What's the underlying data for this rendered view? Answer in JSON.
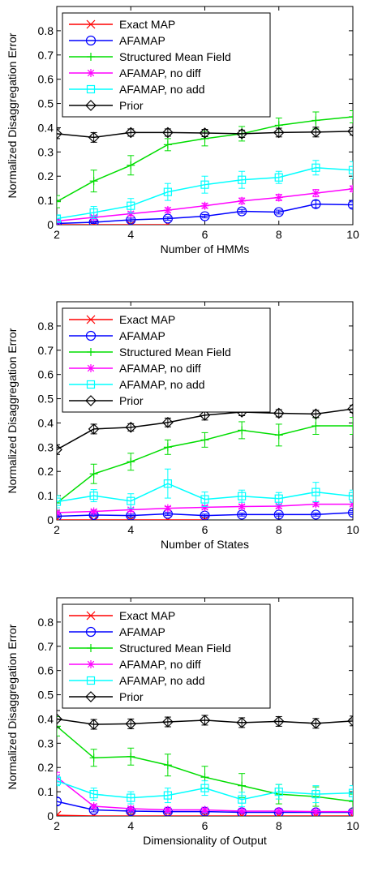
{
  "style": {
    "series_styles": {
      "Exact MAP": {
        "color": "#ff0000",
        "marker": "x"
      },
      "AFAMAP": {
        "color": "#0000ff",
        "marker": "circle"
      },
      "Structured Mean Field": {
        "color": "#00dd00",
        "marker": "plus"
      },
      "AFAMAP, no diff": {
        "color": "#ff00ff",
        "marker": "asterisk"
      },
      "AFAMAP, no add": {
        "color": "#00ffff",
        "marker": "square"
      },
      "Prior": {
        "color": "#000000",
        "marker": "diamond"
      }
    },
    "legend_placement": "top-left",
    "grid": false
  },
  "chart_data": [
    {
      "type": "line",
      "xlabel": "Number of HMMs",
      "ylabel": "Normalized Disaggregation Error",
      "xlim": [
        2,
        10
      ],
      "ylim": [
        0,
        0.9
      ],
      "xticks": [
        2,
        4,
        6,
        8,
        10
      ],
      "yticks": [
        0,
        0.1,
        0.2,
        0.3,
        0.4,
        0.5,
        0.6,
        0.7,
        0.8
      ],
      "series": [
        {
          "name": "Exact MAP",
          "x": [
            2,
            3,
            4,
            5
          ],
          "values": [
            0.0,
            0.0,
            0.0,
            0.0
          ],
          "errors": [
            0,
            0,
            0,
            0
          ]
        },
        {
          "name": "AFAMAP",
          "x": [
            2,
            3,
            4,
            5,
            6,
            7,
            8,
            9,
            10
          ],
          "values": [
            0.005,
            0.01,
            0.02,
            0.025,
            0.035,
            0.055,
            0.052,
            0.085,
            0.082
          ],
          "errors": [
            0.003,
            0.005,
            0.007,
            0.007,
            0.007,
            0.008,
            0.008,
            0.015,
            0.012
          ]
        },
        {
          "name": "Structured Mean Field",
          "x": [
            2,
            3,
            4,
            5,
            6,
            7,
            8,
            9,
            10
          ],
          "values": [
            0.095,
            0.18,
            0.245,
            0.33,
            0.355,
            0.375,
            0.41,
            0.43,
            0.445
          ],
          "errors": [
            0.025,
            0.045,
            0.04,
            0.025,
            0.03,
            0.03,
            0.03,
            0.035,
            0.025
          ]
        },
        {
          "name": "AFAMAP, no diff",
          "x": [
            2,
            3,
            4,
            5,
            6,
            7,
            8,
            9,
            10
          ],
          "values": [
            0.015,
            0.03,
            0.045,
            0.06,
            0.078,
            0.098,
            0.112,
            0.13,
            0.148
          ],
          "errors": [
            0.005,
            0.007,
            0.008,
            0.01,
            0.01,
            0.012,
            0.013,
            0.015,
            0.012
          ]
        },
        {
          "name": "AFAMAP, no add",
          "x": [
            2,
            3,
            4,
            5,
            6,
            7,
            8,
            9,
            10
          ],
          "values": [
            0.025,
            0.05,
            0.078,
            0.135,
            0.165,
            0.185,
            0.195,
            0.235,
            0.225
          ],
          "errors": [
            0.012,
            0.025,
            0.03,
            0.035,
            0.035,
            0.035,
            0.025,
            0.03,
            0.035
          ]
        },
        {
          "name": "Prior",
          "x": [
            2,
            3,
            4,
            5,
            6,
            7,
            8,
            9,
            10
          ],
          "values": [
            0.375,
            0.36,
            0.38,
            0.38,
            0.378,
            0.375,
            0.38,
            0.382,
            0.385
          ],
          "errors": [
            0.02,
            0.02,
            0.015,
            0.015,
            0.015,
            0.015,
            0.018,
            0.02,
            0.015
          ]
        }
      ]
    },
    {
      "type": "line",
      "xlabel": "Number of States",
      "ylabel": "Normalized Disaggregation Error",
      "xlim": [
        2,
        10
      ],
      "ylim": [
        0,
        0.9
      ],
      "xticks": [
        2,
        4,
        6,
        8,
        10
      ],
      "yticks": [
        0,
        0.1,
        0.2,
        0.3,
        0.4,
        0.5,
        0.6,
        0.7,
        0.8
      ],
      "series": [
        {
          "name": "Exact MAP",
          "x": [
            2,
            3,
            4,
            5,
            6
          ],
          "values": [
            0.0,
            0.0,
            0.0,
            0.0,
            0.0
          ],
          "errors": [
            0,
            0,
            0,
            0,
            0
          ]
        },
        {
          "name": "AFAMAP",
          "x": [
            2,
            3,
            4,
            5,
            6,
            7,
            8,
            9,
            10
          ],
          "values": [
            0.015,
            0.02,
            0.018,
            0.025,
            0.018,
            0.022,
            0.022,
            0.022,
            0.03
          ],
          "errors": [
            0.005,
            0.006,
            0.006,
            0.007,
            0.006,
            0.006,
            0.006,
            0.006,
            0.008
          ]
        },
        {
          "name": "Structured Mean Field",
          "x": [
            2,
            3,
            4,
            5,
            6,
            7,
            8,
            9,
            10
          ],
          "values": [
            0.07,
            0.19,
            0.24,
            0.3,
            0.33,
            0.37,
            0.35,
            0.388,
            0.388
          ],
          "errors": [
            0.03,
            0.04,
            0.035,
            0.03,
            0.03,
            0.035,
            0.045,
            0.035,
            0.035
          ]
        },
        {
          "name": "AFAMAP, no diff",
          "x": [
            2,
            3,
            4,
            5,
            6,
            7,
            8,
            9,
            10
          ],
          "values": [
            0.03,
            0.035,
            0.042,
            0.048,
            0.052,
            0.055,
            0.057,
            0.065,
            0.065
          ],
          "errors": [
            0.006,
            0.006,
            0.007,
            0.007,
            0.007,
            0.007,
            0.008,
            0.008,
            0.008
          ]
        },
        {
          "name": "AFAMAP, no add",
          "x": [
            2,
            3,
            4,
            5,
            6,
            7,
            8,
            9,
            10
          ],
          "values": [
            0.075,
            0.1,
            0.078,
            0.15,
            0.085,
            0.098,
            0.088,
            0.115,
            0.098
          ],
          "errors": [
            0.025,
            0.025,
            0.03,
            0.06,
            0.03,
            0.025,
            0.025,
            0.04,
            0.025
          ]
        },
        {
          "name": "Prior",
          "x": [
            2,
            3,
            4,
            5,
            6,
            7,
            8,
            9,
            10
          ],
          "values": [
            0.29,
            0.375,
            0.382,
            0.402,
            0.432,
            0.445,
            0.44,
            0.437,
            0.458
          ],
          "errors": [
            0.02,
            0.02,
            0.015,
            0.018,
            0.02,
            0.015,
            0.015,
            0.015,
            0.015
          ]
        }
      ]
    },
    {
      "type": "line",
      "xlabel": "Dimensionality of Output",
      "ylabel": "Normalized Disaggregation Error",
      "xlim": [
        2,
        10
      ],
      "ylim": [
        0,
        0.9
      ],
      "xticks": [
        2,
        4,
        6,
        8,
        10
      ],
      "yticks": [
        0,
        0.1,
        0.2,
        0.3,
        0.4,
        0.5,
        0.6,
        0.7,
        0.8
      ],
      "series": [
        {
          "name": "Exact MAP",
          "x": [
            2,
            3,
            4,
            5,
            6,
            7,
            8,
            9,
            10
          ],
          "values": [
            0.003,
            0.0,
            0.0,
            0.0,
            0.0,
            0.0,
            0.0,
            0.0,
            0.0
          ],
          "errors": [
            0,
            0,
            0,
            0,
            0,
            0,
            0,
            0,
            0
          ]
        },
        {
          "name": "AFAMAP",
          "x": [
            2,
            3,
            4,
            5,
            6,
            7,
            8,
            9,
            10
          ],
          "values": [
            0.06,
            0.025,
            0.02,
            0.018,
            0.018,
            0.015,
            0.015,
            0.015,
            0.015
          ],
          "errors": [
            0.015,
            0.008,
            0.006,
            0.006,
            0.006,
            0.005,
            0.005,
            0.005,
            0.005
          ]
        },
        {
          "name": "Structured Mean Field",
          "x": [
            2,
            3,
            4,
            5,
            6,
            7,
            8,
            9,
            10
          ],
          "values": [
            0.37,
            0.24,
            0.245,
            0.21,
            0.16,
            0.125,
            0.09,
            0.08,
            0.06
          ],
          "errors": [
            0.04,
            0.035,
            0.035,
            0.045,
            0.045,
            0.05,
            0.04,
            0.04,
            0.03
          ]
        },
        {
          "name": "AFAMAP, no diff",
          "x": [
            2,
            3,
            4,
            5,
            6,
            7,
            8,
            9,
            10
          ],
          "values": [
            0.16,
            0.04,
            0.03,
            0.025,
            0.025,
            0.02,
            0.02,
            0.018,
            0.018
          ],
          "errors": [
            0.02,
            0.008,
            0.007,
            0.007,
            0.007,
            0.006,
            0.006,
            0.006,
            0.006
          ]
        },
        {
          "name": "AFAMAP, no add",
          "x": [
            2,
            3,
            4,
            5,
            6,
            7,
            8,
            9,
            10
          ],
          "values": [
            0.145,
            0.09,
            0.075,
            0.085,
            0.115,
            0.068,
            0.1,
            0.09,
            0.095
          ],
          "errors": [
            0.02,
            0.025,
            0.025,
            0.03,
            0.03,
            0.03,
            0.03,
            0.035,
            0.03
          ]
        },
        {
          "name": "Prior",
          "x": [
            2,
            3,
            4,
            5,
            6,
            7,
            8,
            9,
            10
          ],
          "values": [
            0.4,
            0.378,
            0.38,
            0.388,
            0.395,
            0.385,
            0.39,
            0.382,
            0.392
          ],
          "errors": [
            0.035,
            0.02,
            0.02,
            0.02,
            0.02,
            0.02,
            0.02,
            0.02,
            0.02
          ]
        }
      ]
    }
  ]
}
